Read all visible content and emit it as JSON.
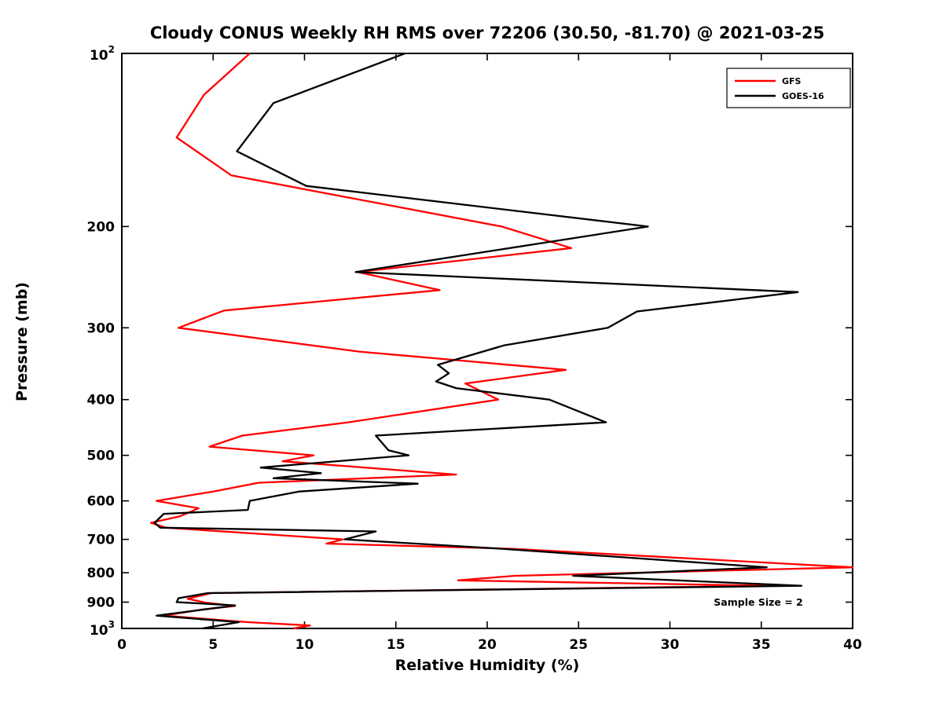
{
  "chart_data": {
    "type": "line",
    "title": "Cloudy CONUS Weekly RH RMS over 72206 (30.50, -81.70) @ 2021-03-25",
    "xlabel": "Relative Humidity (%)",
    "ylabel": "Pressure (mb)",
    "xlim": [
      0,
      40
    ],
    "pressure_lim": [
      100,
      1000
    ],
    "y_scale": "log",
    "grid": false,
    "x_ticks": [
      0,
      5,
      10,
      15,
      20,
      25,
      30,
      35,
      40
    ],
    "y_ticks": [
      {
        "value": 100,
        "base": "10",
        "exp": "2"
      },
      {
        "value": 200,
        "label": "200"
      },
      {
        "value": 300,
        "label": "300"
      },
      {
        "value": 400,
        "label": "400"
      },
      {
        "value": 500,
        "label": "500"
      },
      {
        "value": 600,
        "label": "600"
      },
      {
        "value": 700,
        "label": "700"
      },
      {
        "value": 800,
        "label": "800"
      },
      {
        "value": 900,
        "label": "900"
      },
      {
        "value": 1000,
        "base": "10",
        "exp": "3"
      }
    ],
    "legend": {
      "position": "top-right",
      "entries": [
        {
          "label": "GFS",
          "color": "#ff0000"
        },
        {
          "label": "GOES-16",
          "color": "#000000"
        }
      ]
    },
    "annotation": {
      "text": "Sample Size = 2",
      "x": 32.4,
      "pressure": 902
    },
    "series": [
      {
        "name": "GFS",
        "color": "#ff0000",
        "points": [
          [
            100,
            7.0
          ],
          [
            118,
            4.5
          ],
          [
            140,
            3.0
          ],
          [
            163,
            6.0
          ],
          [
            200,
            20.8
          ],
          [
            218,
            24.6
          ],
          [
            240,
            12.9
          ],
          [
            258,
            17.4
          ],
          [
            280,
            5.6
          ],
          [
            300,
            3.1
          ],
          [
            330,
            13.0
          ],
          [
            355,
            24.3
          ],
          [
            375,
            18.8
          ],
          [
            400,
            20.6
          ],
          [
            438,
            12.4
          ],
          [
            462,
            6.6
          ],
          [
            483,
            4.8
          ],
          [
            500,
            10.5
          ],
          [
            512,
            8.8
          ],
          [
            540,
            18.3
          ],
          [
            558,
            7.5
          ],
          [
            578,
            5.0
          ],
          [
            600,
            1.9
          ],
          [
            618,
            4.2
          ],
          [
            638,
            3.2
          ],
          [
            655,
            1.6
          ],
          [
            668,
            2.4
          ],
          [
            700,
            12.1
          ],
          [
            712,
            11.2
          ],
          [
            727,
            21.4
          ],
          [
            783,
            40.0
          ],
          [
            810,
            21.5
          ],
          [
            825,
            18.4
          ],
          [
            843,
            35.5
          ],
          [
            868,
            4.9
          ],
          [
            888,
            3.6
          ],
          [
            902,
            4.6
          ],
          [
            914,
            6.2
          ],
          [
            928,
            4.3
          ],
          [
            950,
            2.3
          ],
          [
            975,
            6.9
          ],
          [
            988,
            10.3
          ],
          [
            1000,
            9.4
          ]
        ]
      },
      {
        "name": "GOES-16",
        "color": "#000000",
        "points": [
          [
            100,
            15.5
          ],
          [
            122,
            8.3
          ],
          [
            148,
            6.3
          ],
          [
            170,
            10.1
          ],
          [
            200,
            28.8
          ],
          [
            240,
            12.8
          ],
          [
            260,
            37.0
          ],
          [
            281,
            28.2
          ],
          [
            300,
            26.6
          ],
          [
            322,
            20.9
          ],
          [
            348,
            17.3
          ],
          [
            360,
            17.9
          ],
          [
            372,
            17.2
          ],
          [
            382,
            18.3
          ],
          [
            400,
            23.4
          ],
          [
            438,
            26.5
          ],
          [
            462,
            13.9
          ],
          [
            490,
            14.6
          ],
          [
            500,
            15.7
          ],
          [
            525,
            7.6
          ],
          [
            537,
            10.9
          ],
          [
            548,
            8.3
          ],
          [
            560,
            16.2
          ],
          [
            578,
            9.7
          ],
          [
            600,
            7.0
          ],
          [
            622,
            6.9
          ],
          [
            632,
            2.3
          ],
          [
            655,
            1.8
          ],
          [
            668,
            2.1
          ],
          [
            678,
            13.9
          ],
          [
            700,
            12.2
          ],
          [
            727,
            20.8
          ],
          [
            783,
            35.3
          ],
          [
            810,
            24.7
          ],
          [
            843,
            37.2
          ],
          [
            868,
            4.7
          ],
          [
            886,
            3.1
          ],
          [
            900,
            3.0
          ],
          [
            912,
            6.2
          ],
          [
            928,
            4.4
          ],
          [
            950,
            1.9
          ],
          [
            975,
            6.4
          ],
          [
            1000,
            4.4
          ]
        ]
      }
    ]
  }
}
